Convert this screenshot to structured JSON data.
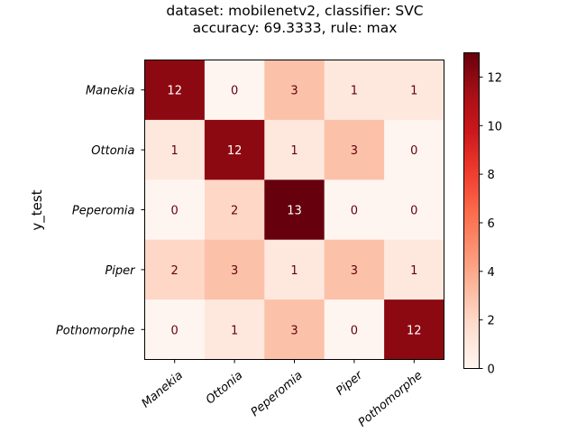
{
  "chart_data": {
    "type": "heatmap",
    "title_lines": [
      "dataset: mobilenetv2, classifier: SVC",
      "accuracy: 69.3333, rule: max"
    ],
    "ylabel": "y_test",
    "xlabel": "",
    "row_labels": [
      "Manekia",
      "Ottonia",
      "Peperomia",
      "Piper",
      "Pothomorphe"
    ],
    "col_labels": [
      "Manekia",
      "Ottonia",
      "Peperomia",
      "Piper",
      "Pothomorphe"
    ],
    "matrix": [
      [
        12,
        0,
        3,
        1,
        1
      ],
      [
        1,
        12,
        1,
        3,
        0
      ],
      [
        0,
        2,
        13,
        0,
        0
      ],
      [
        2,
        3,
        1,
        3,
        1
      ],
      [
        0,
        1,
        3,
        0,
        12
      ]
    ],
    "colorbar": {
      "min": 0,
      "max": 13,
      "ticks": [
        "0",
        "2",
        "4",
        "6",
        "8",
        "10",
        "12"
      ],
      "colormap": "Reds"
    }
  }
}
